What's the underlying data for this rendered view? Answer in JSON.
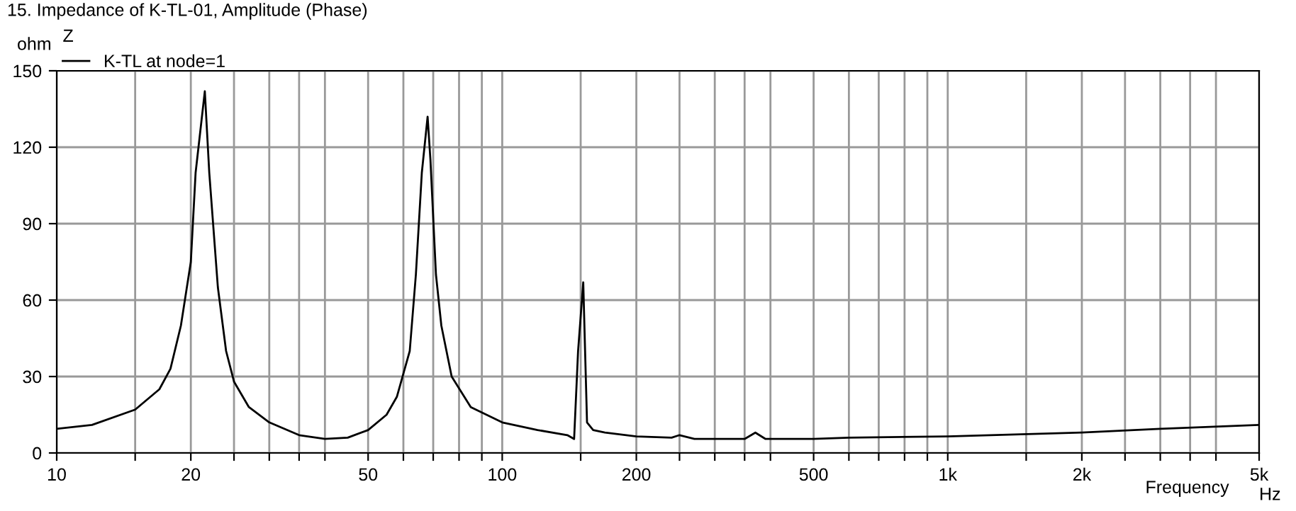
{
  "chart_data": {
    "type": "line",
    "title": "15. Impedance of K-TL-01, Amplitude (Phase)",
    "xlabel": "Frequency",
    "ylabel": "ohm",
    "legend_title": "Z",
    "annotations": [
      "Hz"
    ],
    "log": "x",
    "xlim": [
      10,
      5000
    ],
    "ylim": [
      0,
      150
    ],
    "xticks": [
      10,
      {
        "value": 15,
        "label": null
      },
      20,
      {
        "value": 25,
        "label": null
      },
      {
        "value": 30,
        "label": null
      },
      {
        "value": 35,
        "label": null
      },
      {
        "value": 40,
        "label": null
      },
      50,
      {
        "value": 60,
        "label": null
      },
      {
        "value": 70,
        "label": null
      },
      {
        "value": 80,
        "label": null
      },
      {
        "value": 90,
        "label": null
      },
      100,
      {
        "value": 150,
        "label": null
      },
      200,
      {
        "value": 250,
        "label": null
      },
      {
        "value": 300,
        "label": null
      },
      {
        "value": 350,
        "label": null
      },
      {
        "value": 400,
        "label": null
      },
      500,
      {
        "value": 600,
        "label": null
      },
      {
        "value": 700,
        "label": null
      },
      {
        "value": 800,
        "label": null
      },
      {
        "value": 900,
        "label": null
      },
      {
        "value": 1000,
        "label": "1k"
      },
      {
        "value": 1500,
        "label": null
      },
      {
        "value": 2000,
        "label": "2k"
      },
      {
        "value": 2500,
        "label": null
      },
      {
        "value": 3000,
        "label": null
      },
      {
        "value": 3500,
        "label": null
      },
      {
        "value": 4000,
        "label": null
      },
      {
        "value": 5000,
        "label": "5k"
      }
    ],
    "yticks": [
      0,
      30,
      60,
      90,
      120,
      150
    ],
    "grid": true,
    "legend": "top left",
    "marker": "none",
    "line_style": "solid",
    "series": [
      {
        "name": "K-TL at node=1",
        "color": "#000000",
        "x": [
          10,
          12,
          15,
          17,
          18,
          19,
          20,
          20.5,
          21.5,
          22,
          23,
          24,
          25,
          27,
          30,
          35,
          40,
          45,
          50,
          55,
          58,
          62,
          64,
          66,
          68,
          69,
          71,
          73,
          77,
          85,
          100,
          120,
          140,
          145,
          148,
          152,
          155,
          160,
          170,
          200,
          240,
          250,
          270,
          350,
          370,
          390,
          500,
          600,
          1000,
          2000,
          3000,
          5000
        ],
        "values": [
          9.5,
          11,
          17,
          25,
          33,
          50,
          75,
          110,
          142,
          110,
          65,
          40,
          28,
          18,
          12,
          7,
          5.5,
          6,
          9,
          15,
          22,
          40,
          70,
          110,
          132,
          115,
          70,
          50,
          30,
          18,
          12,
          9,
          7,
          5.5,
          40,
          67,
          12,
          9,
          8,
          6.5,
          6,
          7,
          5.5,
          5.5,
          8,
          5.5,
          5.5,
          6,
          6.5,
          8,
          9.5,
          11
        ]
      }
    ]
  }
}
